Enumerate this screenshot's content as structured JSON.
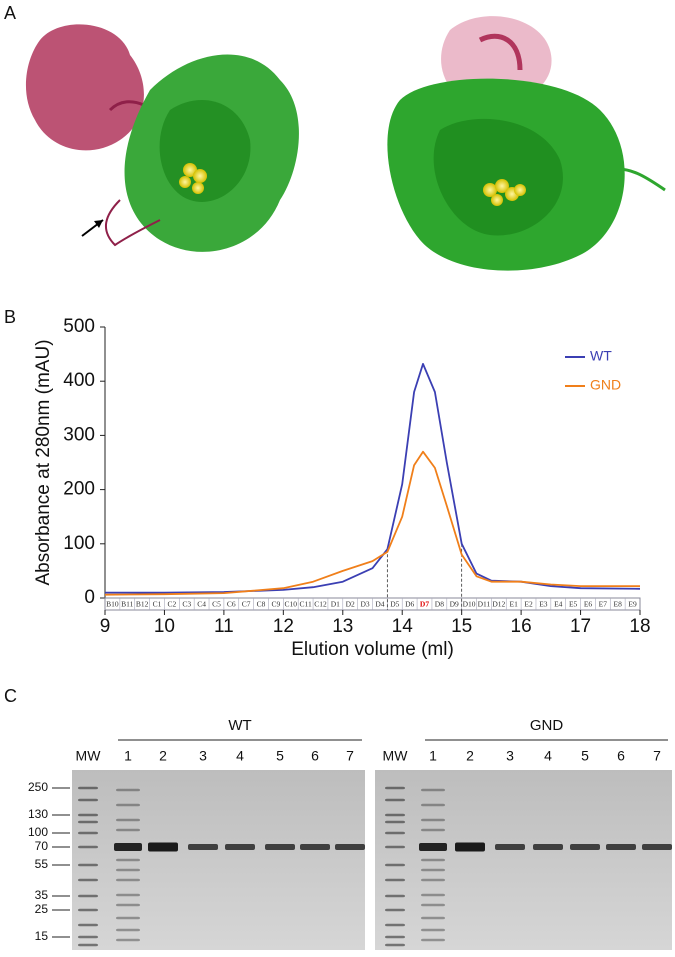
{
  "panels": [
    "A",
    "B",
    "C"
  ],
  "chart_data": {
    "type": "line",
    "xlabel": "Elution volume (ml)",
    "ylabel": "Absorbance at 280nm (mAU)",
    "x": [
      9,
      10,
      11,
      12,
      12.5,
      13,
      13.5,
      13.75,
      14,
      14.2,
      14.35,
      14.55,
      14.75,
      15,
      15.25,
      15.5,
      16,
      16.5,
      17,
      18
    ],
    "series": [
      {
        "name": "WT",
        "color": "#3b3fb3",
        "values": [
          10,
          10,
          11,
          15,
          20,
          30,
          55,
          90,
          210,
          380,
          432,
          380,
          250,
          100,
          45,
          32,
          30,
          22,
          18,
          17
        ]
      },
      {
        "name": "GND",
        "color": "#f07f1a",
        "values": [
          6,
          7,
          9,
          18,
          30,
          50,
          68,
          85,
          150,
          245,
          270,
          240,
          170,
          80,
          40,
          30,
          30,
          25,
          22,
          22
        ]
      }
    ],
    "xlim": [
      9,
      18
    ],
    "xticks": [
      9,
      10,
      11,
      12,
      13,
      14,
      15,
      16,
      17,
      18
    ],
    "ylim": [
      0,
      500
    ],
    "yticks": [
      0,
      100,
      200,
      300,
      400,
      500
    ],
    "vlines": [
      13.75,
      15.0
    ],
    "fractions": [
      "B10",
      "B11",
      "B12",
      "C1",
      "C2",
      "C3",
      "C4",
      "C5",
      "C6",
      "C7",
      "C8",
      "C9",
      "C10",
      "C11",
      "C12",
      "D1",
      "D2",
      "D3",
      "D4",
      "D5",
      "D6",
      "D7",
      "D8",
      "D9",
      "D10",
      "D11",
      "D12",
      "E1",
      "E2",
      "E3",
      "E4",
      "E5",
      "E6",
      "E7",
      "E8",
      "E9"
    ],
    "highlight_fraction": 21,
    "highlight_color": "#e00000",
    "legend": "upper right",
    "grid": false
  },
  "gel": {
    "groups": [
      {
        "name": "WT",
        "lanes": [
          "MW",
          "1",
          "2",
          "3",
          "4",
          "5",
          "6",
          "7"
        ]
      },
      {
        "name": "GND",
        "lanes": [
          "MW",
          "1",
          "2",
          "3",
          "4",
          "5",
          "6",
          "7"
        ]
      }
    ],
    "mw_markers": [
      250,
      130,
      100,
      70,
      55,
      35,
      25,
      15
    ]
  }
}
